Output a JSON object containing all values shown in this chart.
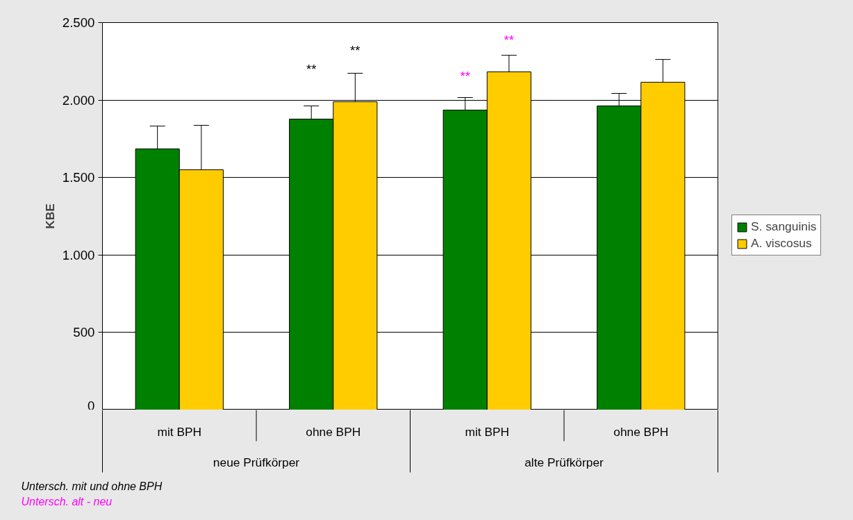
{
  "chart_data": {
    "type": "bar",
    "ylabel": "KBE",
    "categories": [
      "mit BPH",
      "ohne BPH",
      "mit BPH",
      "ohne BPH"
    ],
    "series": [
      {
        "name": "S. sanguinis",
        "color": "#008000",
        "values": [
          1685,
          1877,
          1935,
          1962
        ],
        "errors": [
          [
            1685,
            1832
          ],
          [
            1877,
            1962
          ],
          [
            1935,
            2016
          ],
          [
            1962,
            2043
          ]
        ]
      },
      {
        "name": "A. viscosus",
        "color": "#ffcc00",
        "values": [
          1550,
          1989,
          2182,
          2115
        ],
        "errors": [
          [
            1550,
            1837
          ],
          [
            1989,
            2173
          ],
          [
            2182,
            2289
          ],
          [
            2115,
            2262
          ]
        ]
      }
    ],
    "ylim": [
      0,
      2500
    ],
    "yticks": [
      {
        "value": 0,
        "label": "0"
      },
      {
        "value": 500,
        "label": "500"
      },
      {
        "value": 1000,
        "label": "1.000"
      },
      {
        "value": 1500,
        "label": "1.500"
      },
      {
        "value": 2000,
        "label": "2.000"
      },
      {
        "value": 2500,
        "label": "2.500"
      }
    ],
    "grid": "y",
    "legend": "right",
    "annotations": [
      "**",
      "**",
      "**",
      "**",
      "neue Prüfkörper",
      "alte Prüfkörper",
      "Untersch. mit und ohne BPH",
      "Untersch. alt  - neu"
    ]
  }
}
